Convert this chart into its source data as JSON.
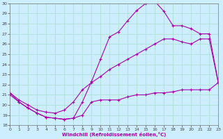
{
  "xlabel": "Windchill (Refroidissement éolien,°C)",
  "xlim": [
    0,
    23
  ],
  "ylim": [
    18,
    30
  ],
  "yticks": [
    18,
    19,
    20,
    21,
    22,
    23,
    24,
    25,
    26,
    27,
    28,
    29,
    30
  ],
  "xticks": [
    0,
    1,
    2,
    3,
    4,
    5,
    6,
    7,
    8,
    9,
    10,
    11,
    12,
    13,
    14,
    15,
    16,
    17,
    18,
    19,
    20,
    21,
    22,
    23
  ],
  "bg_color": "#cceeff",
  "grid_color": "#aaddcc",
  "line_color": "#aa00aa",
  "curve1_x": [
    0,
    1,
    2,
    3,
    4,
    5,
    6,
    7,
    8,
    9,
    10,
    11,
    12,
    13,
    14,
    15,
    16,
    17,
    18,
    19,
    20,
    21,
    22,
    23
  ],
  "curve1_y": [
    21.0,
    20.3,
    19.7,
    19.2,
    18.8,
    18.7,
    18.6,
    18.7,
    19.0,
    20.3,
    20.5,
    20.5,
    20.5,
    20.8,
    21.0,
    21.0,
    21.2,
    21.2,
    21.3,
    21.5,
    21.5,
    21.5,
    21.5,
    22.2
  ],
  "curve2_x": [
    0,
    1,
    2,
    3,
    4,
    5,
    6,
    7,
    8,
    9,
    10,
    11,
    12,
    13,
    14,
    15,
    16,
    17,
    18,
    19,
    20,
    21,
    22,
    23
  ],
  "curve2_y": [
    21.2,
    20.5,
    20.0,
    19.5,
    19.3,
    19.2,
    19.5,
    20.3,
    21.5,
    22.2,
    22.8,
    23.5,
    24.0,
    24.5,
    25.0,
    25.5,
    26.0,
    26.5,
    26.5,
    26.2,
    26.0,
    26.5,
    26.5,
    22.2
  ],
  "curve3_x": [
    0,
    1,
    2,
    3,
    4,
    5,
    6,
    7,
    8,
    9,
    10,
    11,
    12,
    13,
    14,
    15,
    16,
    17,
    18,
    19,
    20,
    21,
    22,
    23
  ],
  "curve3_y": [
    21.2,
    20.3,
    19.7,
    19.2,
    18.8,
    18.7,
    18.6,
    18.7,
    20.3,
    22.3,
    24.5,
    26.7,
    27.2,
    28.3,
    29.3,
    30.0,
    30.2,
    29.2,
    27.8,
    27.8,
    27.5,
    27.0,
    27.0,
    22.2
  ]
}
